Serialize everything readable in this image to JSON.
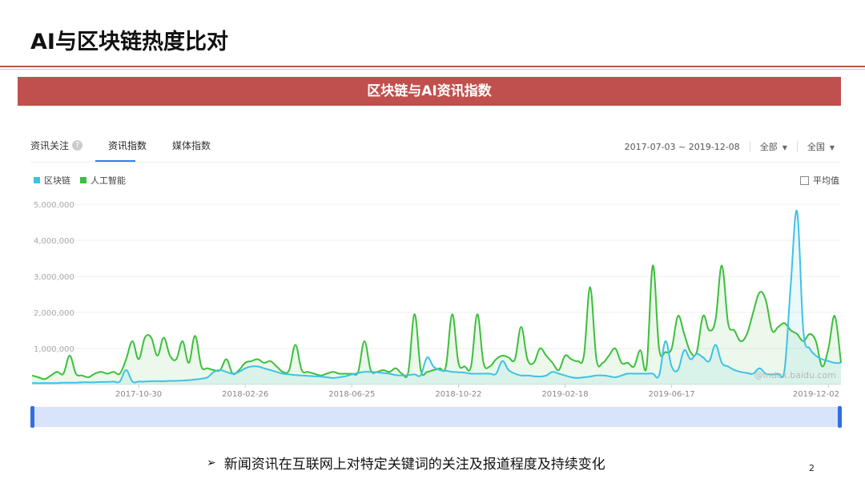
{
  "slide": {
    "title": "AI与区块链热度比对",
    "banner": "区块链与AI资讯指数",
    "caption": "新闻资讯在互联网上对特定关键词的关注及报道程度及持续变化",
    "page_number": "2",
    "bullet": "➢"
  },
  "tabs": [
    {
      "label": "资讯关注",
      "help": "?"
    },
    {
      "label": "资讯指数"
    },
    {
      "label": "媒体指数"
    }
  ],
  "filters": {
    "date_range": "2017-07-03 ~ 2019-12-08",
    "scope": "全部",
    "region": "全国"
  },
  "average_toggle": "平均值",
  "watermark": "@index.baidu.com",
  "colors": {
    "blockchain": "#3fc1e6",
    "ai": "#3cbf3c",
    "accent": "#c0504d",
    "scroll": "#2f6fe0"
  },
  "chart_data": {
    "type": "area",
    "ylim": [
      0,
      5000000
    ],
    "y_ticks": [
      "5,000,000",
      "4,000,000",
      "3,000,000",
      "2,000,000",
      "1,000,000"
    ],
    "y_tick_values": [
      5000000,
      4000000,
      3000000,
      2000000,
      1000000
    ],
    "x_tick_labels": [
      "2017-10-30",
      "2018-02-26",
      "2018-06-25",
      "2018-10-22",
      "2019-02-18",
      "2019-06-17",
      "2019-12-02"
    ],
    "x_tick_weeks": [
      17,
      34,
      51,
      68,
      85,
      102,
      127
    ],
    "x_start": "2017-07-03",
    "x_end": "2019-12-08",
    "series": [
      {
        "name": "区块链",
        "values": [
          40000,
          40000,
          40000,
          40000,
          40000,
          50000,
          50000,
          50000,
          60000,
          60000,
          60000,
          70000,
          70000,
          80000,
          80000,
          400000,
          80000,
          80000,
          80000,
          90000,
          90000,
          90000,
          100000,
          100000,
          110000,
          120000,
          140000,
          160000,
          200000,
          350000,
          400000,
          350000,
          300000,
          350000,
          450000,
          500000,
          500000,
          450000,
          400000,
          350000,
          300000,
          280000,
          260000,
          250000,
          240000,
          230000,
          220000,
          200000,
          180000,
          200000,
          230000,
          280000,
          320000,
          350000,
          350000,
          340000,
          320000,
          300000,
          260000,
          250000,
          260000,
          280000,
          260000,
          750000,
          500000,
          400000,
          380000,
          350000,
          340000,
          330000,
          300000,
          300000,
          300000,
          300000,
          300000,
          650000,
          400000,
          300000,
          250000,
          250000,
          230000,
          220000,
          250000,
          350000,
          300000,
          250000,
          200000,
          180000,
          200000,
          220000,
          250000,
          250000,
          230000,
          200000,
          250000,
          300000,
          300000,
          300000,
          300000,
          300000,
          250000,
          1200000,
          500000,
          400000,
          950000,
          700000,
          850000,
          750000,
          650000,
          1100000,
          600000,
          500000,
          400000,
          350000,
          320000,
          300000,
          450000,
          300000,
          280000,
          300000,
          400000,
          2800000,
          4800000,
          1500000,
          1000000,
          800000,
          700000,
          650000,
          600000,
          600000
        ],
        "color": "#3fc1e6"
      },
      {
        "name": "人工智能",
        "values": [
          250000,
          200000,
          150000,
          250000,
          350000,
          300000,
          800000,
          300000,
          250000,
          200000,
          300000,
          350000,
          300000,
          350000,
          300000,
          700000,
          1200000,
          700000,
          1300000,
          1300000,
          800000,
          1300000,
          800000,
          700000,
          1200000,
          600000,
          1350000,
          500000,
          450000,
          400000,
          400000,
          700000,
          300000,
          400000,
          600000,
          650000,
          700000,
          600000,
          650000,
          500000,
          350000,
          400000,
          1100000,
          400000,
          350000,
          300000,
          250000,
          300000,
          350000,
          300000,
          300000,
          300000,
          350000,
          1200000,
          400000,
          350000,
          400000,
          350000,
          450000,
          300000,
          350000,
          1950000,
          400000,
          350000,
          400000,
          450000,
          500000,
          1950000,
          600000,
          500000,
          500000,
          1950000,
          600000,
          500000,
          700000,
          800000,
          750000,
          700000,
          1600000,
          700000,
          600000,
          1000000,
          800000,
          600000,
          400000,
          800000,
          700000,
          650000,
          800000,
          2700000,
          700000,
          600000,
          800000,
          1000000,
          600000,
          600000,
          500000,
          950000,
          500000,
          3300000,
          1000000,
          900000,
          1000000,
          1900000,
          1400000,
          900000,
          900000,
          1900000,
          1500000,
          1800000,
          3300000,
          1700000,
          1500000,
          1200000,
          1400000,
          2000000,
          2550000,
          2350000,
          1500000,
          1600000,
          1700000,
          1500000,
          1400000,
          1200000,
          1400000,
          1200000,
          500000,
          1000000,
          1900000,
          600000
        ],
        "color": "#3cbf3c"
      }
    ]
  }
}
